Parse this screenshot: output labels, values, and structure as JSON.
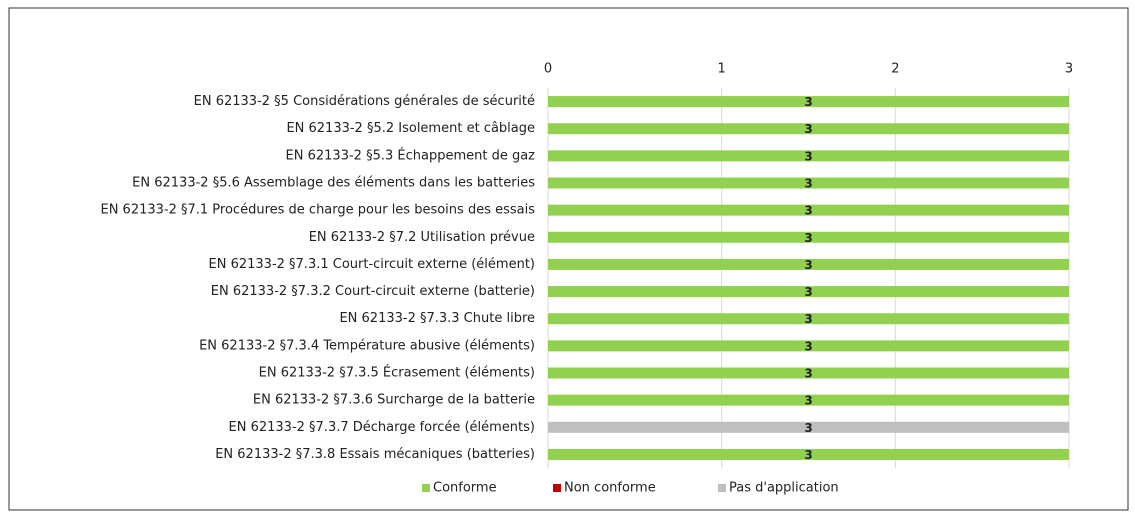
{
  "chart_data": {
    "type": "stacked_bar",
    "orientation": "horizontal",
    "categories": [
      "EN 62133-2 §5 Considérations générales de sécurité",
      "EN 62133-2 §5.2 Isolement et câblage",
      "EN 62133-2 §5.3 Échappement de gaz",
      "EN 62133-2 §5.6 Assemblage des éléments dans les batteries",
      "EN 62133-2 §7.1 Procédures de charge pour les besoins des essais",
      "EN 62133-2 §7.2 Utilisation prévue",
      "EN 62133-2 §7.3.1 Court-circuit externe (élément)",
      "EN 62133-2 §7.3.2 Court-circuit externe (batterie)",
      "EN 62133-2 §7.3.3 Chute libre",
      "EN 62133-2 §7.3.4 Température abusive (éléments)",
      "EN 62133-2 §7.3.5 Écrasement (éléments)",
      "EN 62133-2 §7.3.6 Surcharge de la batterie",
      "EN 62133-2 §7.3.7 Décharge forcée (éléments)",
      "EN 62133-2 §7.3.8 Essais mécaniques (batteries)"
    ],
    "series": [
      {
        "name": "Conforme",
        "color": "#92d050",
        "values": [
          3,
          3,
          3,
          3,
          3,
          3,
          3,
          3,
          3,
          3,
          3,
          3,
          null,
          3
        ]
      },
      {
        "name": "Non conforme",
        "color": "#c00000",
        "values": [
          null,
          null,
          null,
          null,
          null,
          null,
          null,
          null,
          null,
          null,
          null,
          null,
          null,
          null
        ]
      },
      {
        "name": "Pas d'application",
        "color": "#bfbfbf",
        "values": [
          null,
          null,
          null,
          null,
          null,
          null,
          null,
          null,
          null,
          null,
          null,
          null,
          3,
          null
        ]
      }
    ],
    "xlim": [
      0,
      3
    ],
    "xticks": [
      0,
      1,
      2,
      3
    ],
    "grid": true,
    "legend": "bottom"
  }
}
